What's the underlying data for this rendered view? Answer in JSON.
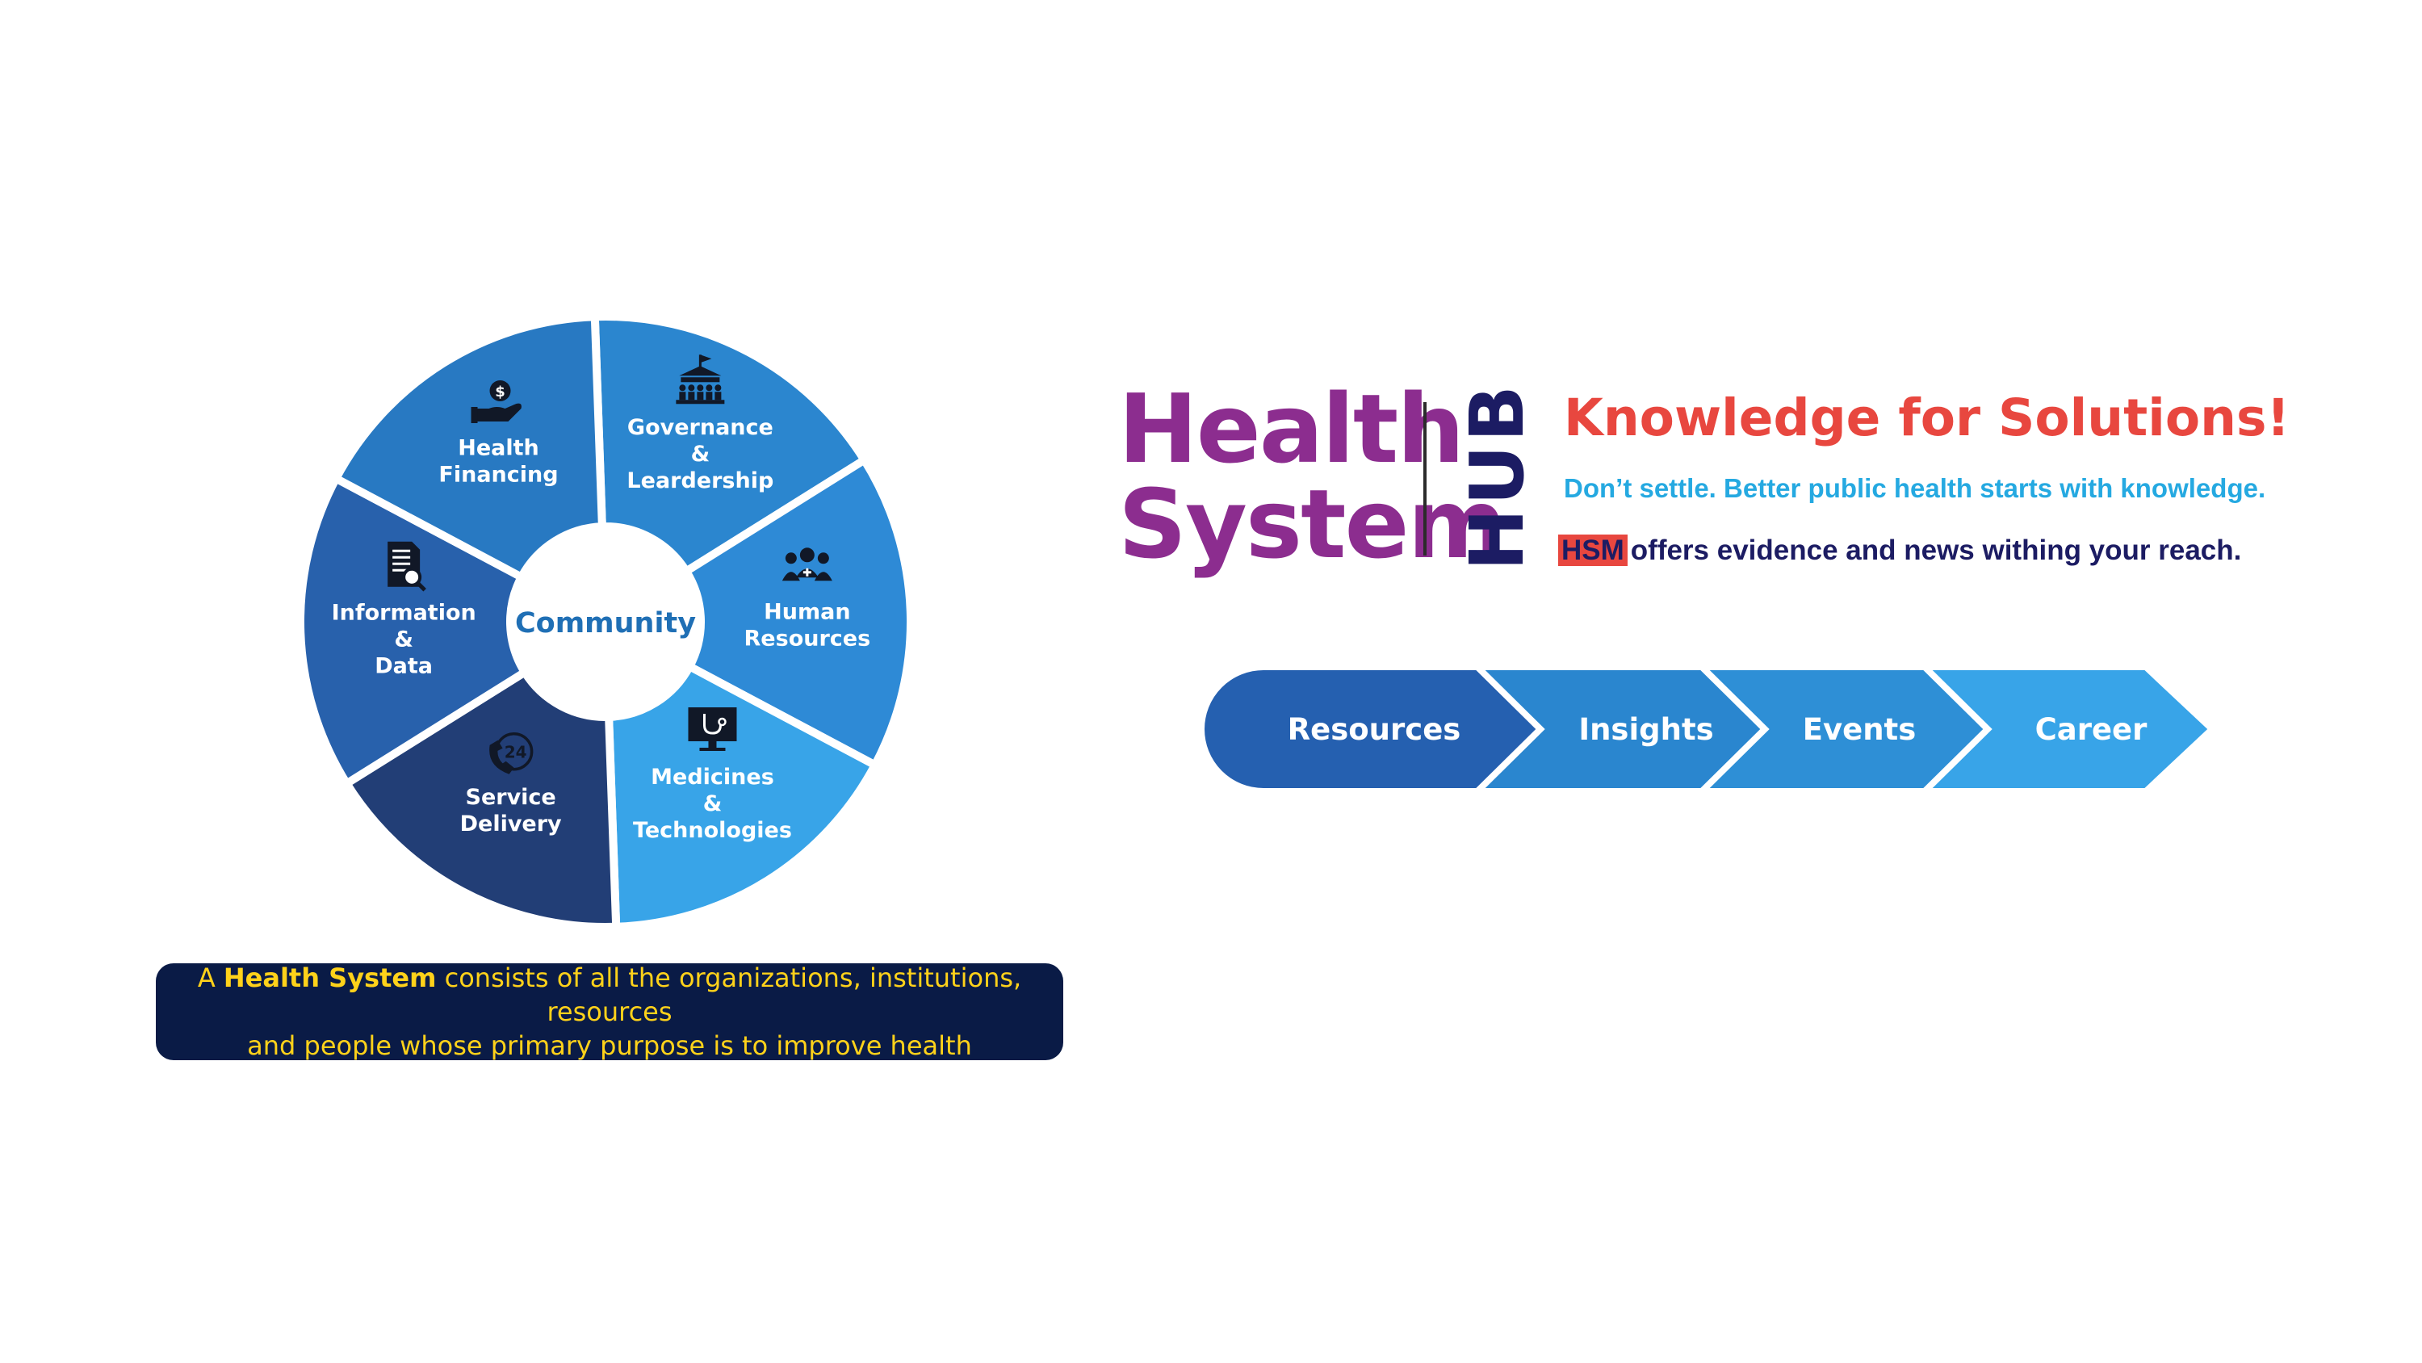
{
  "wheel": {
    "center_label": "Community",
    "segments": [
      {
        "key": "governance",
        "lines": [
          "Governance",
          "&",
          "Leardership"
        ],
        "icon": "governance-building-icon",
        "color": "#2b86cf"
      },
      {
        "key": "human-resources",
        "lines": [
          "Human",
          "Resources"
        ],
        "icon": "people-group-icon",
        "color": "#2e8ad6"
      },
      {
        "key": "medicines",
        "lines": [
          "Medicines",
          "&",
          "Technologies"
        ],
        "icon": "monitor-stethoscope-icon",
        "color": "#38a4e8"
      },
      {
        "key": "service-delivery",
        "lines": [
          "Service",
          "Delivery"
        ],
        "icon": "phone-24-icon",
        "color": "#223e76"
      },
      {
        "key": "information",
        "lines": [
          "Information",
          "&",
          "Data"
        ],
        "icon": "document-search-icon",
        "color": "#2861ac"
      },
      {
        "key": "financing",
        "lines": [
          "Health",
          "Financing"
        ],
        "icon": "hand-coin-icon",
        "color": "#2879c2"
      }
    ]
  },
  "caption": {
    "prefix": "A ",
    "highlight": "Health System",
    "line1_rest": " consists of all the organizations, institutions, resources",
    "line2": "and people whose primary purpose is to improve health"
  },
  "logo": {
    "word1": "Health",
    "word2": "System",
    "side": "HUB"
  },
  "tagline": "Knowledge for Solutions!",
  "subline": "Don’t settle. Better public health starts with knowledge.",
  "hsm": {
    "badge": "HSM",
    "text": "offers evidence and news withing your reach."
  },
  "nav": [
    {
      "label": "Resources",
      "color": "#2560b0"
    },
    {
      "label": "Insights",
      "color": "#2a86cf"
    },
    {
      "label": "Events",
      "color": "#2e8fd6"
    },
    {
      "label": "Career",
      "color": "#38a4e8"
    }
  ],
  "colors": {
    "logo_purple": "#8c2d8f",
    "hub_navy": "#1c1c63",
    "tagline_red": "#e8473f",
    "subline_blue": "#25a9e1",
    "caption_bg": "#0a1b46",
    "caption_text": "#ffd21a"
  }
}
